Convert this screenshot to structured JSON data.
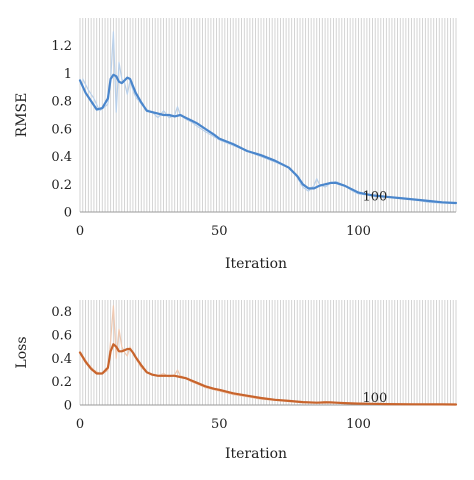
{
  "chart_data": [
    {
      "type": "line",
      "title": "",
      "xlabel": "Iteration",
      "ylabel": "RMSE",
      "xlim": [
        0,
        135
      ],
      "ylim": [
        0,
        1.4
      ],
      "x_ticks": [
        0,
        50,
        100
      ],
      "x_tick_labels": [
        "0",
        "50",
        "100"
      ],
      "y_ticks": [
        0,
        0.2,
        0.4,
        0.6,
        0.8,
        1.0,
        1.2
      ],
      "y_tick_labels": [
        "0",
        "0.2",
        "0.4",
        "0.6",
        "0.8",
        "1",
        "1.2"
      ],
      "grid": "vertical",
      "annotation": {
        "text": "100",
        "x": 100,
        "y": 0.07
      },
      "colors": {
        "smoothed": "#4a86cc",
        "raw": "#b9d0ea",
        "grid": "#cfcfcf"
      },
      "series": [
        {
          "role": "raw",
          "x": [
            1,
            3,
            5,
            7,
            9,
            10,
            11,
            12,
            13,
            14,
            15,
            16,
            17,
            18,
            19,
            20,
            22,
            24,
            26,
            28,
            30,
            32,
            34,
            35,
            36,
            38,
            40,
            42,
            45,
            50,
            55,
            60,
            65,
            70,
            75,
            78,
            80,
            82,
            84,
            85,
            86,
            88,
            90,
            92,
            95,
            98,
            100,
            105,
            110,
            115,
            120,
            125,
            130,
            135
          ],
          "y": [
            0.96,
            0.88,
            0.82,
            0.73,
            0.76,
            0.78,
            0.95,
            1.3,
            0.72,
            1.08,
            0.96,
            0.93,
            0.85,
            0.95,
            0.88,
            0.83,
            0.78,
            0.74,
            0.72,
            0.68,
            0.73,
            0.68,
            0.7,
            0.76,
            0.7,
            0.67,
            0.65,
            0.62,
            0.58,
            0.52,
            0.48,
            0.44,
            0.4,
            0.36,
            0.32,
            0.25,
            0.18,
            0.15,
            0.19,
            0.24,
            0.2,
            0.18,
            0.21,
            0.22,
            0.19,
            0.15,
            0.13,
            0.12,
            0.11,
            0.1,
            0.09,
            0.07,
            0.065,
            0.06
          ]
        },
        {
          "role": "smoothed",
          "x": [
            0,
            2,
            4,
            6,
            8,
            10,
            11,
            12,
            13,
            14,
            15,
            16,
            17,
            18,
            19,
            20,
            22,
            24,
            26,
            28,
            30,
            32,
            34,
            36,
            38,
            40,
            42,
            45,
            48,
            50,
            55,
            60,
            65,
            70,
            75,
            78,
            80,
            82,
            84,
            86,
            88,
            90,
            92,
            95,
            98,
            100,
            105,
            110,
            115,
            120,
            125,
            130,
            135
          ],
          "y": [
            0.95,
            0.86,
            0.8,
            0.74,
            0.75,
            0.82,
            0.96,
            0.99,
            0.98,
            0.94,
            0.93,
            0.95,
            0.97,
            0.96,
            0.91,
            0.86,
            0.79,
            0.73,
            0.72,
            0.71,
            0.7,
            0.7,
            0.69,
            0.7,
            0.68,
            0.66,
            0.64,
            0.6,
            0.56,
            0.53,
            0.49,
            0.44,
            0.41,
            0.37,
            0.32,
            0.26,
            0.2,
            0.17,
            0.17,
            0.19,
            0.2,
            0.21,
            0.21,
            0.19,
            0.16,
            0.14,
            0.12,
            0.11,
            0.1,
            0.09,
            0.08,
            0.07,
            0.065
          ]
        }
      ]
    },
    {
      "type": "line",
      "title": "",
      "xlabel": "Iteration",
      "ylabel": "Loss",
      "xlim": [
        0,
        135
      ],
      "ylim": [
        0,
        0.9
      ],
      "x_ticks": [
        0,
        50,
        100
      ],
      "x_tick_labels": [
        "0",
        "50",
        "100"
      ],
      "y_ticks": [
        0,
        0.2,
        0.4,
        0.6,
        0.8
      ],
      "y_tick_labels": [
        "0",
        "0.2",
        "0.4",
        "0.6",
        "0.8"
      ],
      "grid": "vertical",
      "annotation": {
        "text": "100",
        "x": 100,
        "y": 0.01
      },
      "colors": {
        "smoothed": "#c8642c",
        "raw": "#efc8b0",
        "grid": "#cfcfcf"
      },
      "series": [
        {
          "role": "raw",
          "x": [
            1,
            3,
            5,
            7,
            9,
            10,
            11,
            12,
            13,
            14,
            15,
            16,
            17,
            18,
            19,
            20,
            22,
            24,
            26,
            28,
            30,
            32,
            34,
            35,
            36,
            38,
            40,
            42,
            45,
            50,
            55,
            60,
            65,
            70,
            75,
            80,
            85,
            88,
            90,
            92,
            95,
            100,
            105,
            110,
            120,
            130,
            135
          ],
          "y": [
            0.42,
            0.35,
            0.3,
            0.27,
            0.28,
            0.3,
            0.55,
            0.85,
            0.4,
            0.65,
            0.5,
            0.45,
            0.42,
            0.5,
            0.44,
            0.4,
            0.32,
            0.28,
            0.26,
            0.25,
            0.27,
            0.24,
            0.26,
            0.3,
            0.25,
            0.23,
            0.2,
            0.18,
            0.15,
            0.12,
            0.09,
            0.07,
            0.05,
            0.04,
            0.03,
            0.02,
            0.02,
            0.03,
            0.025,
            0.02,
            0.015,
            0.012,
            0.01,
            0.008,
            0.006,
            0.004,
            0.004
          ]
        },
        {
          "role": "smoothed",
          "x": [
            0,
            2,
            4,
            6,
            8,
            10,
            11,
            12,
            13,
            14,
            15,
            16,
            17,
            18,
            19,
            20,
            22,
            24,
            26,
            28,
            30,
            32,
            34,
            36,
            38,
            40,
            42,
            45,
            48,
            50,
            55,
            60,
            65,
            70,
            75,
            80,
            85,
            88,
            90,
            92,
            95,
            100,
            105,
            110,
            120,
            130,
            135
          ],
          "y": [
            0.45,
            0.37,
            0.31,
            0.27,
            0.27,
            0.32,
            0.46,
            0.52,
            0.5,
            0.46,
            0.46,
            0.47,
            0.48,
            0.48,
            0.45,
            0.41,
            0.34,
            0.28,
            0.26,
            0.25,
            0.25,
            0.25,
            0.25,
            0.24,
            0.23,
            0.21,
            0.19,
            0.16,
            0.14,
            0.13,
            0.1,
            0.08,
            0.06,
            0.045,
            0.035,
            0.025,
            0.02,
            0.022,
            0.022,
            0.02,
            0.016,
            0.012,
            0.01,
            0.008,
            0.006,
            0.005,
            0.004
          ]
        }
      ]
    }
  ]
}
